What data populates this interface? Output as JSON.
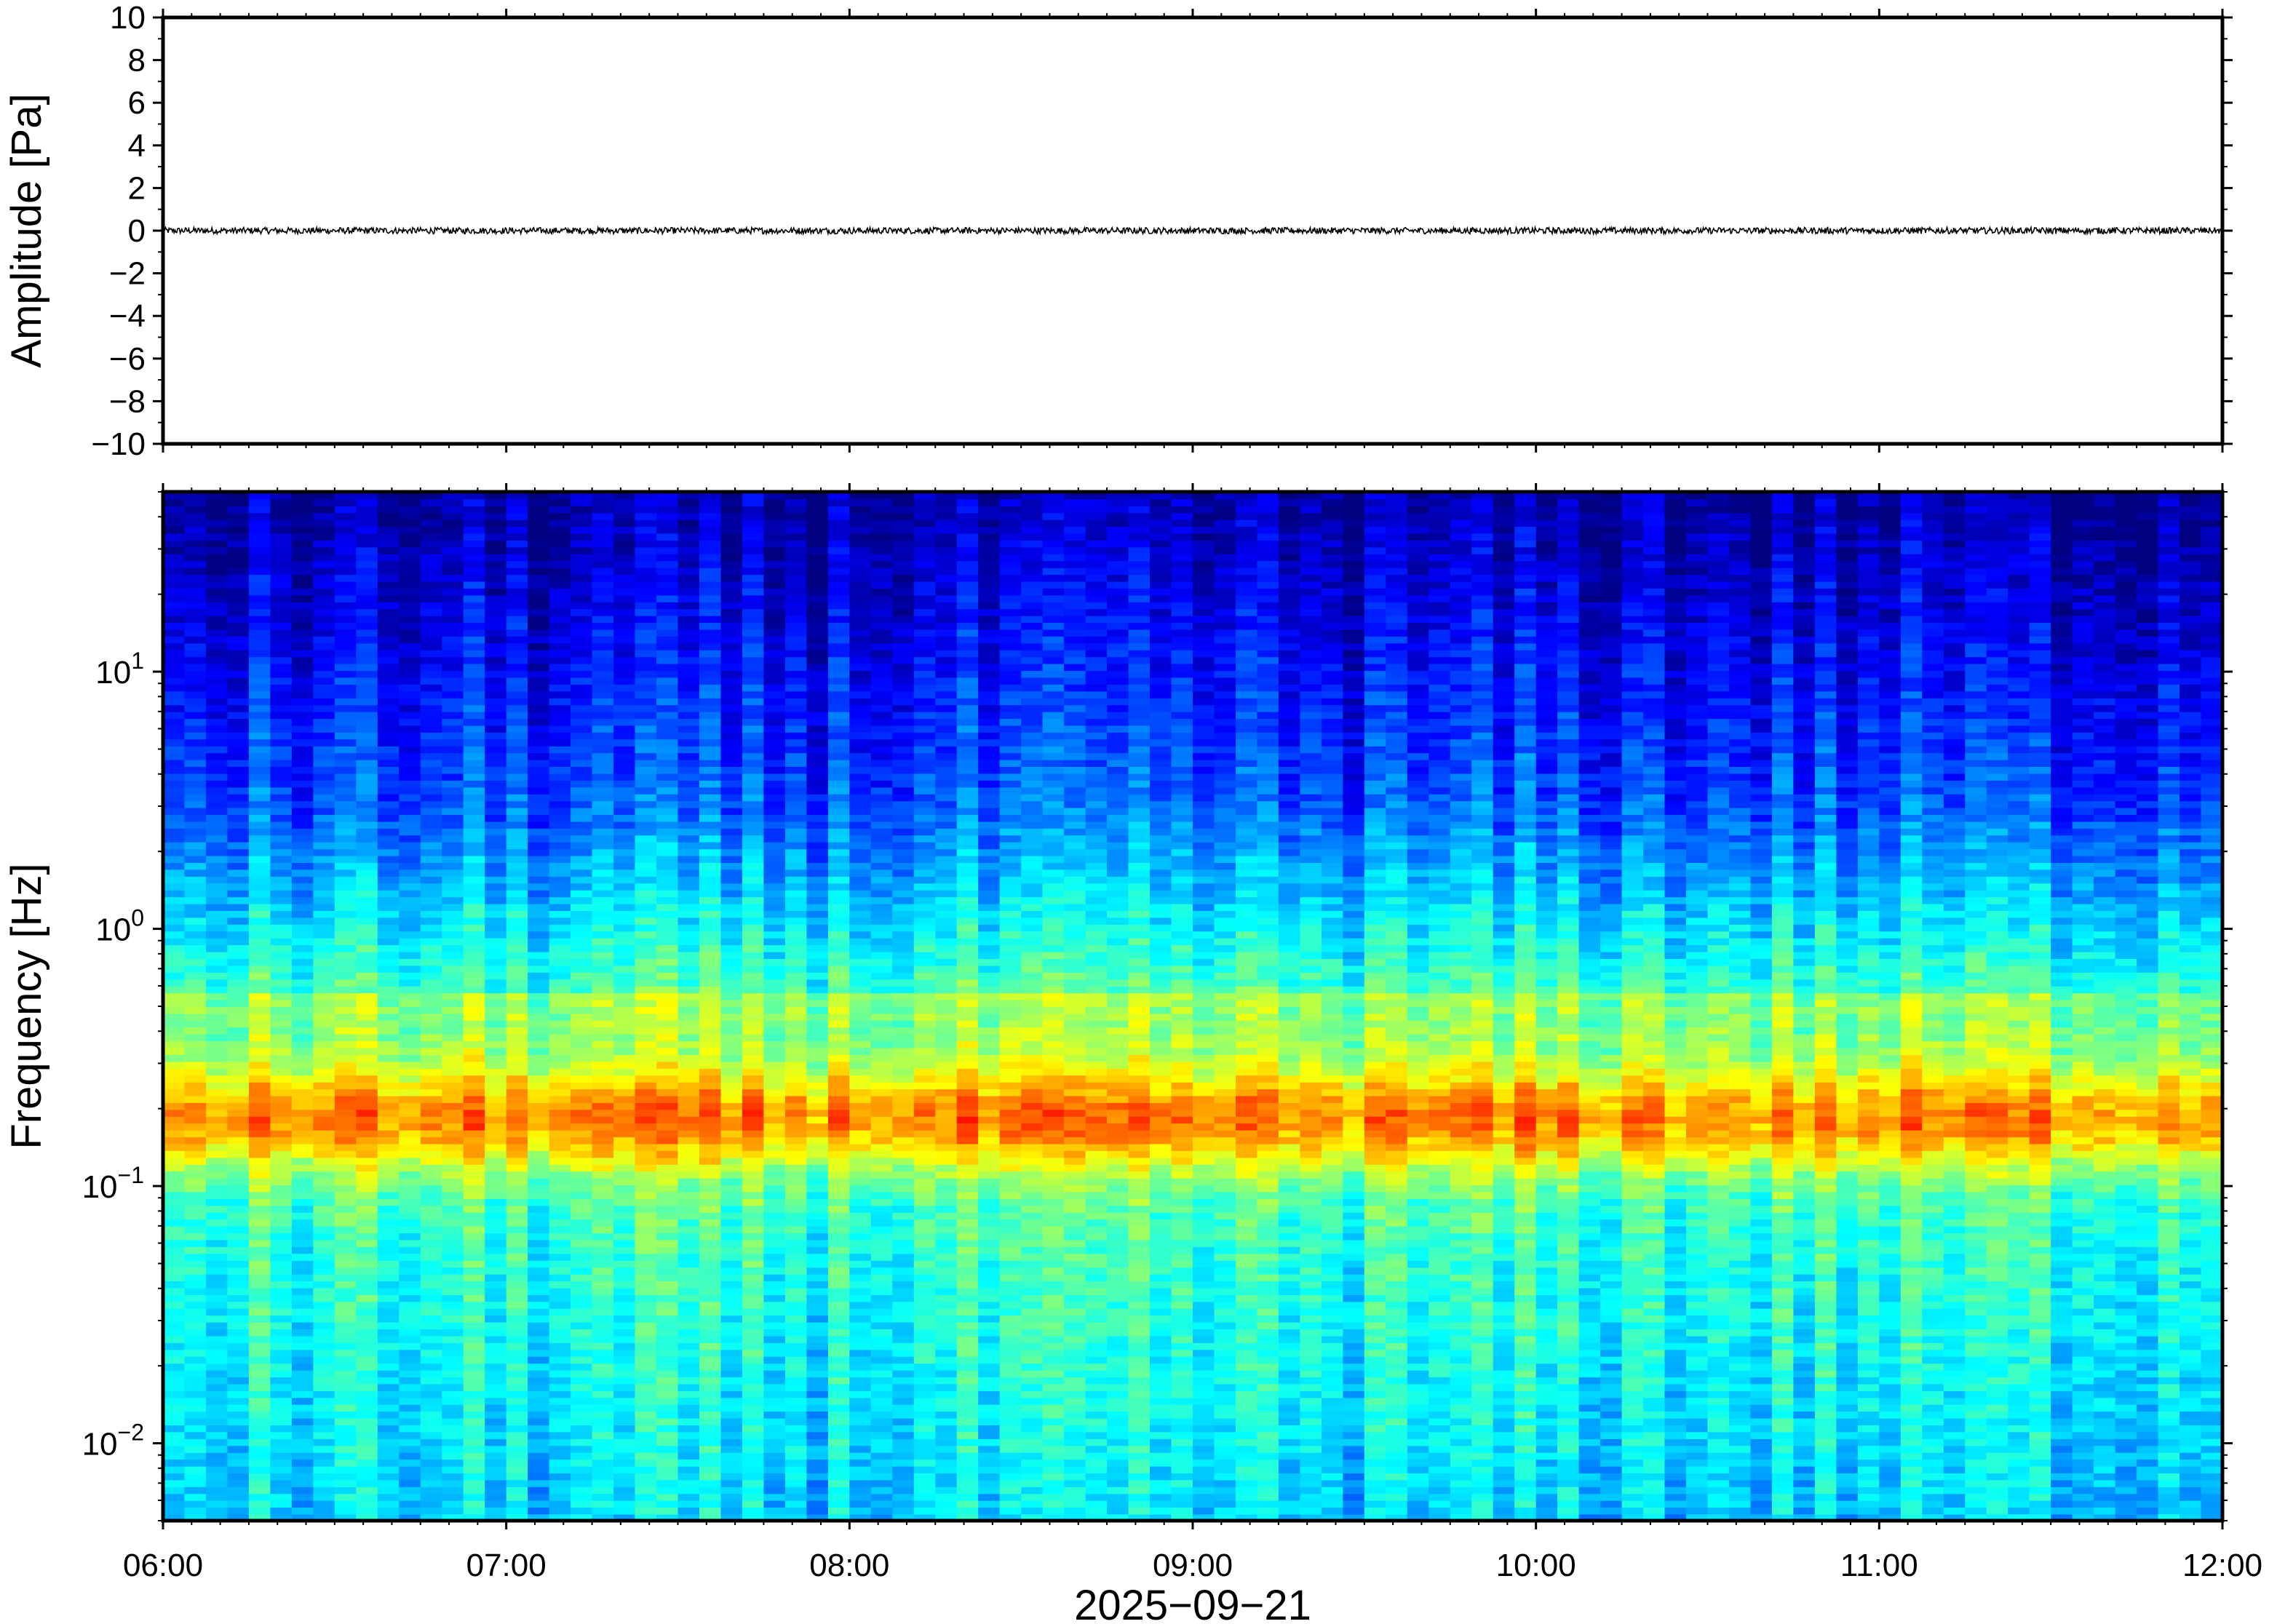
{
  "chart_data": [
    {
      "type": "line",
      "ylabel": "Amplitude [Pa]",
      "ylim": [
        -10,
        10
      ],
      "yticks": [
        "10",
        "8",
        "6",
        "4",
        "2",
        "0",
        "−2",
        "−4",
        "−6",
        "−8",
        "−10"
      ],
      "ytick_values": [
        10,
        8,
        6,
        4,
        2,
        0,
        -2,
        -4,
        -6,
        -8,
        -10
      ],
      "series": [
        {
          "color": "#000000",
          "baseline": 0,
          "noise_amplitude": 0.15
        }
      ],
      "grid": false
    },
    {
      "type": "heatmap",
      "ylabel": "Frequency [Hz]",
      "yscale": "log",
      "ylim": [
        0.005,
        50
      ],
      "yticks": [
        {
          "base": "10",
          "exp": "1",
          "value": 10
        },
        {
          "base": "10",
          "exp": "0",
          "value": 1
        },
        {
          "base": "10",
          "exp": "−1",
          "value": 0.1
        },
        {
          "base": "10",
          "exp": "−2",
          "value": 0.01
        }
      ],
      "colormap": "jet",
      "peak_band_hz": [
        0.13,
        0.25
      ],
      "grid": false
    }
  ],
  "x_axis": {
    "ticks": [
      "06:00",
      "07:00",
      "08:00",
      "09:00",
      "10:00",
      "11:00",
      "12:00"
    ],
    "xlabel": "2025−09−21",
    "xlim_hours": [
      6,
      12
    ]
  }
}
